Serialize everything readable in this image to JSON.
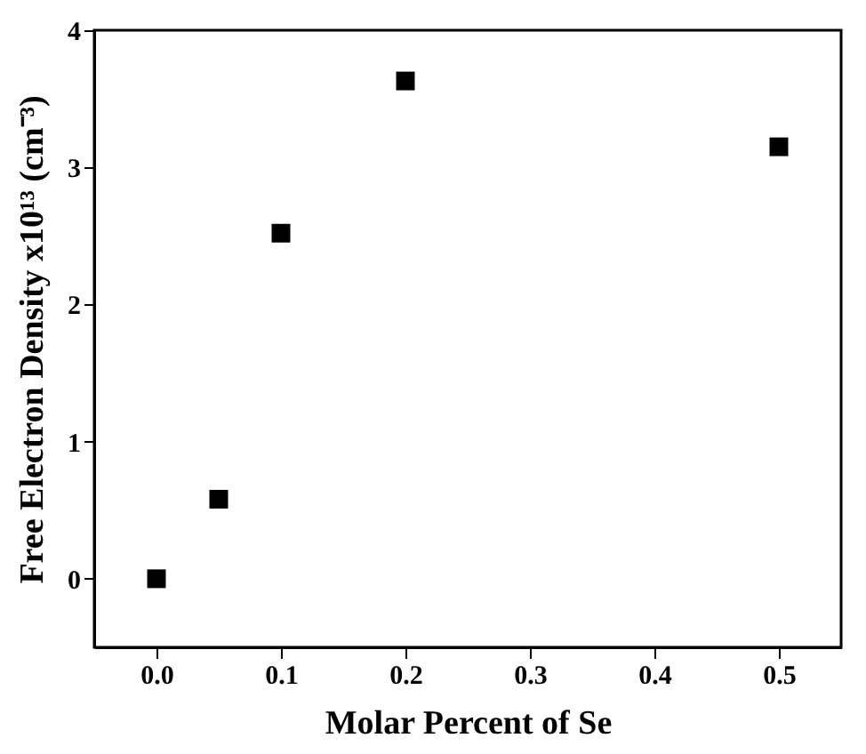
{
  "chart_data": {
    "type": "scatter",
    "xlabel": "Molar Percent of Se",
    "ylabel": "Free Electron Density x10¹³ (cm⁻³)",
    "x": [
      0,
      0.05,
      0.1,
      0.2,
      0.5
    ],
    "series": [
      {
        "color": "#000000",
        "values": [
          0,
          0.58,
          2.52,
          3.63,
          3.15
        ]
      }
    ],
    "xlim": [
      -0.05,
      0.55
    ],
    "xticks": [
      {
        "value": 0,
        "label": "0.0"
      },
      0.1,
      0.2,
      0.3,
      0.4,
      0.5
    ],
    "ylim": [
      -0.5,
      4
    ],
    "yticks": [
      0,
      1,
      2,
      3,
      4
    ],
    "marker": "square",
    "grid": false,
    "legend": false
  }
}
